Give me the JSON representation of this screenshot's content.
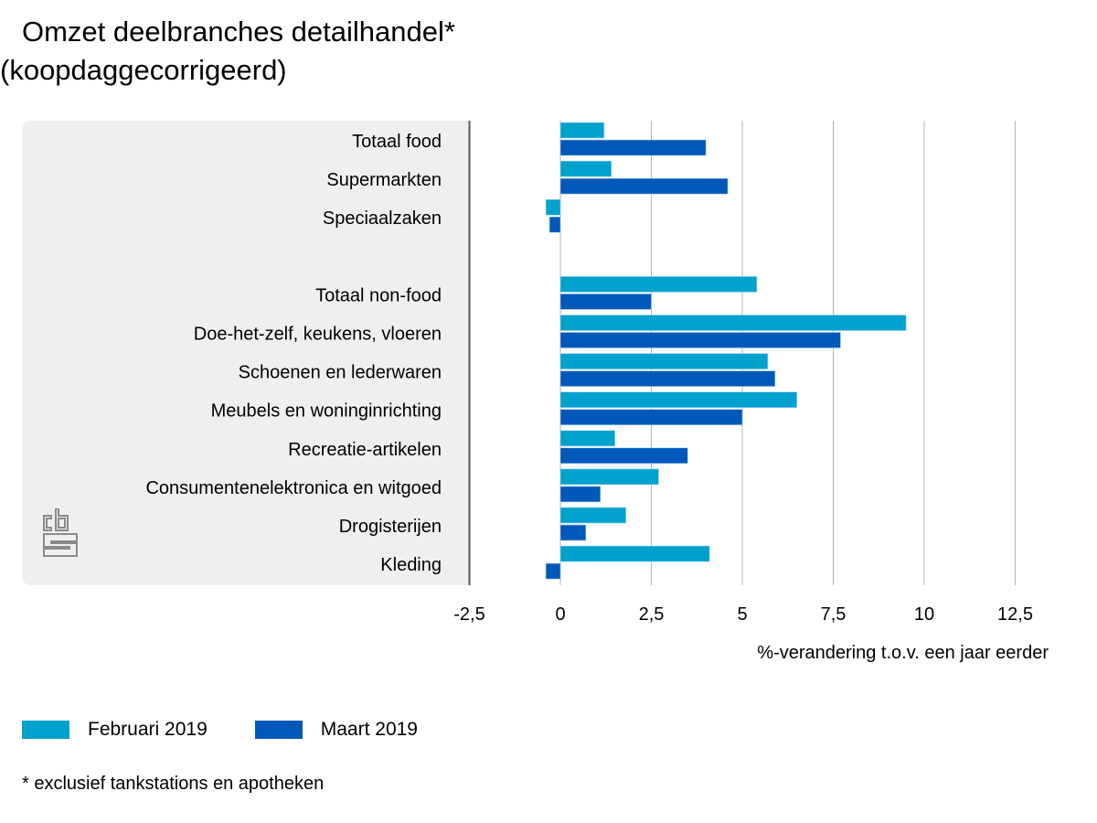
{
  "chart_data": {
    "type": "bar",
    "orientation": "horizontal",
    "title": "Omzet deelbranches detailhandel*",
    "subtitle": "(koopdaggecorrigeerd)",
    "xlabel": "%-verandering t.o.v. een jaar eerder",
    "ylabel": "",
    "xlim": [
      -2.5,
      13.5
    ],
    "xticks": [
      -2.5,
      0,
      2.5,
      5,
      7.5,
      10,
      12.5
    ],
    "xtick_labels": [
      "-2,5",
      "0",
      "2,5",
      "5",
      "7,5",
      "10",
      "12,5"
    ],
    "grid": true,
    "legend_position": "bottom-left",
    "categories": [
      "Totaal food",
      "Supermarkten",
      "Speciaalzaken",
      "",
      "Totaal non-food",
      "Doe-het-zelf, keukens, vloeren",
      "Schoenen en lederwaren",
      "Meubels en woninginrichting",
      "Recreatie-artikelen",
      "Consumentenelektronica en witgoed",
      "Drogisterijen",
      "Kleding"
    ],
    "series": [
      {
        "name": "Februari 2019",
        "color": "#00a1cd",
        "values": [
          1.2,
          1.4,
          -0.4,
          null,
          5.4,
          9.5,
          5.7,
          6.5,
          1.5,
          2.7,
          1.8,
          4.1
        ]
      },
      {
        "name": "Maart 2019",
        "color": "#0058b8",
        "values": [
          4.0,
          4.6,
          -0.3,
          null,
          2.5,
          7.7,
          5.9,
          5.0,
          3.5,
          1.1,
          0.7,
          -0.4
        ]
      }
    ],
    "footnote": "* exclusief tankstations en apotheken"
  },
  "logo": {
    "name": "cbs-logo"
  }
}
